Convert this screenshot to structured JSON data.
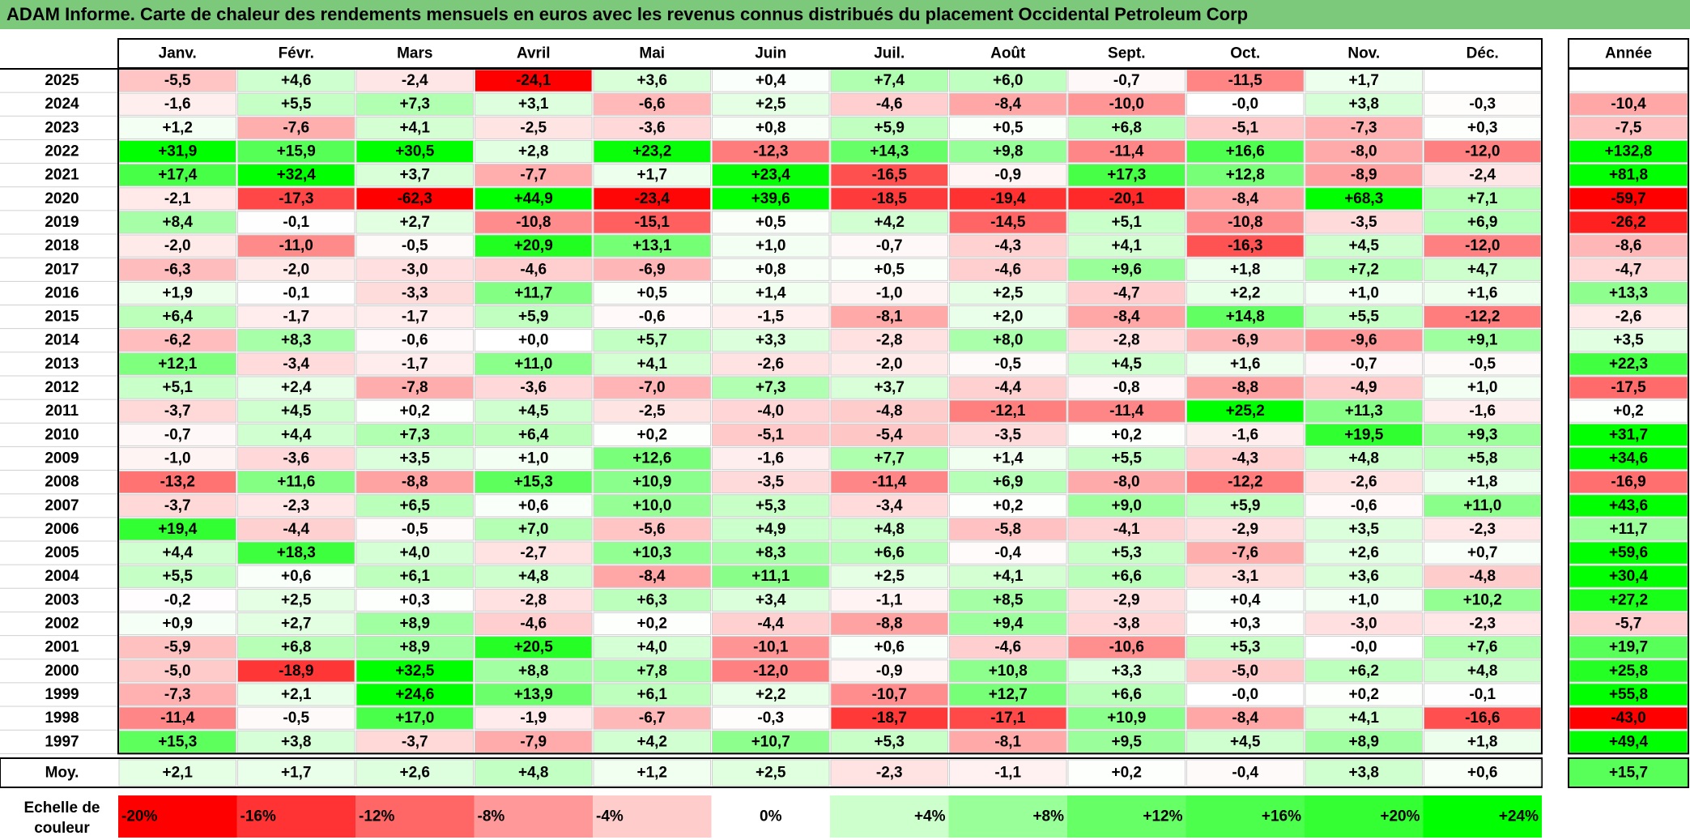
{
  "title": "ADAM Informe. Carte de chaleur des rendements mensuels en euros avec les revenus connus distribués du placement Occidental Petroleum Corp",
  "chart_data": {
    "type": "heatmap",
    "months": [
      "Janv.",
      "Févr.",
      "Mars",
      "Avril",
      "Mai",
      "Juin",
      "Juil.",
      "Août",
      "Sept.",
      "Oct.",
      "Nov.",
      "Déc."
    ],
    "year_header": "Année",
    "rows": [
      {
        "year": "2025",
        "values": [
          "-5,5",
          "+4,6",
          "-2,4",
          "-24,1",
          "+3,6",
          "+0,4",
          "+7,4",
          "+6,0",
          "-0,7",
          "-11,5",
          "+1,7",
          ""
        ],
        "annual": ""
      },
      {
        "year": "2024",
        "values": [
          "-1,6",
          "+5,5",
          "+7,3",
          "+3,1",
          "-6,6",
          "+2,5",
          "-4,6",
          "-8,4",
          "-10,0",
          "-0,0",
          "+3,8",
          "-0,3"
        ],
        "annual": "-10,4"
      },
      {
        "year": "2023",
        "values": [
          "+1,2",
          "-7,6",
          "+4,1",
          "-2,5",
          "-3,6",
          "+0,8",
          "+5,9",
          "+0,5",
          "+6,8",
          "-5,1",
          "-7,3",
          "+0,3"
        ],
        "annual": "-7,5"
      },
      {
        "year": "2022",
        "values": [
          "+31,9",
          "+15,9",
          "+30,5",
          "+2,8",
          "+23,2",
          "-12,3",
          "+14,3",
          "+9,8",
          "-11,4",
          "+16,6",
          "-8,0",
          "-12,0"
        ],
        "annual": "+132,8"
      },
      {
        "year": "2021",
        "values": [
          "+17,4",
          "+32,4",
          "+3,7",
          "-7,7",
          "+1,7",
          "+23,4",
          "-16,5",
          "-0,9",
          "+17,3",
          "+12,8",
          "-8,9",
          "-2,4"
        ],
        "annual": "+81,8"
      },
      {
        "year": "2020",
        "values": [
          "-2,1",
          "-17,3",
          "-62,3",
          "+44,9",
          "-23,4",
          "+39,6",
          "-18,5",
          "-19,4",
          "-20,1",
          "-8,4",
          "+68,3",
          "+7,1"
        ],
        "annual": "-59,7"
      },
      {
        "year": "2019",
        "values": [
          "+8,4",
          "-0,1",
          "+2,7",
          "-10,8",
          "-15,1",
          "+0,5",
          "+4,2",
          "-14,5",
          "+5,1",
          "-10,8",
          "-3,5",
          "+6,9"
        ],
        "annual": "-26,2"
      },
      {
        "year": "2018",
        "values": [
          "-2,0",
          "-11,0",
          "-0,5",
          "+20,9",
          "+13,1",
          "+1,0",
          "-0,7",
          "-4,3",
          "+4,1",
          "-16,3",
          "+4,5",
          "-12,0"
        ],
        "annual": "-8,6"
      },
      {
        "year": "2017",
        "values": [
          "-6,3",
          "-2,0",
          "-3,0",
          "-4,6",
          "-6,9",
          "+0,8",
          "+0,5",
          "-4,6",
          "+9,6",
          "+1,8",
          "+7,2",
          "+4,7"
        ],
        "annual": "-4,7"
      },
      {
        "year": "2016",
        "values": [
          "+1,9",
          "-0,1",
          "-3,3",
          "+11,7",
          "+0,5",
          "+1,4",
          "-1,0",
          "+2,5",
          "-4,7",
          "+2,2",
          "+1,0",
          "+1,6"
        ],
        "annual": "+13,3"
      },
      {
        "year": "2015",
        "values": [
          "+6,4",
          "-1,7",
          "-1,7",
          "+5,9",
          "-0,6",
          "-1,5",
          "-8,1",
          "+2,0",
          "-8,4",
          "+14,8",
          "+5,5",
          "-12,2"
        ],
        "annual": "-2,6"
      },
      {
        "year": "2014",
        "values": [
          "-6,2",
          "+8,3",
          "-0,6",
          "+0,0",
          "+5,7",
          "+3,3",
          "-2,8",
          "+8,0",
          "-2,8",
          "-6,9",
          "-9,6",
          "+9,1"
        ],
        "annual": "+3,5"
      },
      {
        "year": "2013",
        "values": [
          "+12,1",
          "-3,4",
          "-1,7",
          "+11,0",
          "+4,1",
          "-2,6",
          "-2,0",
          "-0,5",
          "+4,5",
          "+1,6",
          "-0,7",
          "-0,5"
        ],
        "annual": "+22,3"
      },
      {
        "year": "2012",
        "values": [
          "+5,1",
          "+2,4",
          "-7,8",
          "-3,6",
          "-7,0",
          "+7,3",
          "+3,7",
          "-4,4",
          "-0,8",
          "-8,8",
          "-4,9",
          "+1,0"
        ],
        "annual": "-17,5"
      },
      {
        "year": "2011",
        "values": [
          "-3,7",
          "+4,5",
          "+0,2",
          "+4,5",
          "-2,5",
          "-4,0",
          "-4,8",
          "-12,1",
          "-11,4",
          "+25,2",
          "+11,3",
          "-1,6"
        ],
        "annual": "+0,2"
      },
      {
        "year": "2010",
        "values": [
          "-0,7",
          "+4,4",
          "+7,3",
          "+6,4",
          "+0,2",
          "-5,1",
          "-5,4",
          "-3,5",
          "+0,2",
          "-1,6",
          "+19,5",
          "+9,3"
        ],
        "annual": "+31,7"
      },
      {
        "year": "2009",
        "values": [
          "-1,0",
          "-3,6",
          "+3,5",
          "+1,0",
          "+12,6",
          "-1,6",
          "+7,7",
          "+1,4",
          "+5,5",
          "-4,3",
          "+4,8",
          "+5,8"
        ],
        "annual": "+34,6"
      },
      {
        "year": "2008",
        "values": [
          "-13,2",
          "+11,6",
          "-8,8",
          "+15,3",
          "+10,9",
          "-3,5",
          "-11,4",
          "+6,9",
          "-8,0",
          "-12,2",
          "-2,6",
          "+1,8"
        ],
        "annual": "-16,9"
      },
      {
        "year": "2007",
        "values": [
          "-3,7",
          "-2,3",
          "+6,5",
          "+0,6",
          "+10,0",
          "+5,3",
          "-3,4",
          "+0,2",
          "+9,0",
          "+5,9",
          "-0,6",
          "+11,0"
        ],
        "annual": "+43,6"
      },
      {
        "year": "2006",
        "values": [
          "+19,4",
          "-4,4",
          "-0,5",
          "+7,0",
          "-5,6",
          "+4,9",
          "+4,8",
          "-5,8",
          "-4,1",
          "-2,9",
          "+3,5",
          "-2,3"
        ],
        "annual": "+11,7"
      },
      {
        "year": "2005",
        "values": [
          "+4,4",
          "+18,3",
          "+4,0",
          "-2,7",
          "+10,3",
          "+8,3",
          "+6,6",
          "-0,4",
          "+5,3",
          "-7,6",
          "+2,6",
          "+0,7"
        ],
        "annual": "+59,6"
      },
      {
        "year": "2004",
        "values": [
          "+5,5",
          "+0,6",
          "+6,1",
          "+4,8",
          "-8,4",
          "+11,1",
          "+2,5",
          "+4,1",
          "+6,6",
          "-3,1",
          "+3,6",
          "-4,8"
        ],
        "annual": "+30,4"
      },
      {
        "year": "2003",
        "values": [
          "-0,2",
          "+2,5",
          "+0,3",
          "-2,8",
          "+6,3",
          "+3,4",
          "-1,1",
          "+8,5",
          "-2,9",
          "+0,4",
          "+1,0",
          "+10,2"
        ],
        "annual": "+27,2"
      },
      {
        "year": "2002",
        "values": [
          "+0,9",
          "+2,7",
          "+8,9",
          "-4,6",
          "+0,2",
          "-4,4",
          "-8,8",
          "+9,4",
          "-3,8",
          "+0,3",
          "-3,0",
          "-2,3"
        ],
        "annual": "-5,7"
      },
      {
        "year": "2001",
        "values": [
          "-5,9",
          "+6,8",
          "+8,9",
          "+20,5",
          "+4,0",
          "-10,1",
          "+0,6",
          "-4,6",
          "-10,6",
          "+5,3",
          "-0,0",
          "+7,6"
        ],
        "annual": "+19,7"
      },
      {
        "year": "2000",
        "values": [
          "-5,0",
          "-18,9",
          "+32,5",
          "+8,8",
          "+7,8",
          "-12,0",
          "-0,9",
          "+10,8",
          "+3,3",
          "-5,0",
          "+6,2",
          "+4,8"
        ],
        "annual": "+25,8"
      },
      {
        "year": "1999",
        "values": [
          "-7,3",
          "+2,1",
          "+24,6",
          "+13,9",
          "+6,1",
          "+2,2",
          "-10,7",
          "+12,7",
          "+6,6",
          "-0,0",
          "+0,2",
          "-0,1"
        ],
        "annual": "+55,8"
      },
      {
        "year": "1998",
        "values": [
          "-11,4",
          "-0,5",
          "+17,0",
          "-1,9",
          "-6,7",
          "-0,3",
          "-18,7",
          "-17,1",
          "+10,9",
          "-8,4",
          "+4,1",
          "-16,6"
        ],
        "annual": "-43,0"
      },
      {
        "year": "1997",
        "values": [
          "+15,3",
          "+3,8",
          "-3,7",
          "-7,9",
          "+4,2",
          "+10,7",
          "+5,3",
          "-8,1",
          "+9,5",
          "+4,5",
          "+8,9",
          "+1,8"
        ],
        "annual": "+49,4"
      }
    ],
    "average": {
      "label": "Moy.",
      "values": [
        "+2,1",
        "+1,7",
        "+2,6",
        "+4,8",
        "+1,2",
        "+2,5",
        "-2,3",
        "-1,1",
        "+0,2",
        "-0,4",
        "+3,8",
        "+0,6"
      ],
      "annual": "+15,7"
    },
    "color_scale": {
      "label": "Echelle de couleur",
      "steps": [
        {
          "label": "-20%",
          "value": -20,
          "color": "#ff0000"
        },
        {
          "label": "-16%",
          "value": -16,
          "color": "#ff3333"
        },
        {
          "label": "-12%",
          "value": -12,
          "color": "#ff6666"
        },
        {
          "label": "-8%",
          "value": -8,
          "color": "#ff9999"
        },
        {
          "label": "-4%",
          "value": -4,
          "color": "#ffcccc"
        },
        {
          "label": "0%",
          "value": 0,
          "color": "#ffffff"
        },
        {
          "label": "+4%",
          "value": 4,
          "color": "#ccffcc"
        },
        {
          "label": "+8%",
          "value": 8,
          "color": "#99ff99"
        },
        {
          "label": "+12%",
          "value": 12,
          "color": "#66ff66"
        },
        {
          "label": "+16%",
          "value": 16,
          "color": "#4dff4d"
        },
        {
          "label": "+20%",
          "value": 20,
          "color": "#33ff33"
        },
        {
          "label": "+24%",
          "value": 24,
          "color": "#00ff00"
        }
      ]
    }
  },
  "colors": {
    "title_bar": "#7cc97c",
    "negative_max": "#ff0000",
    "positive_max": "#00ff00",
    "neutral": "#ffffff"
  }
}
